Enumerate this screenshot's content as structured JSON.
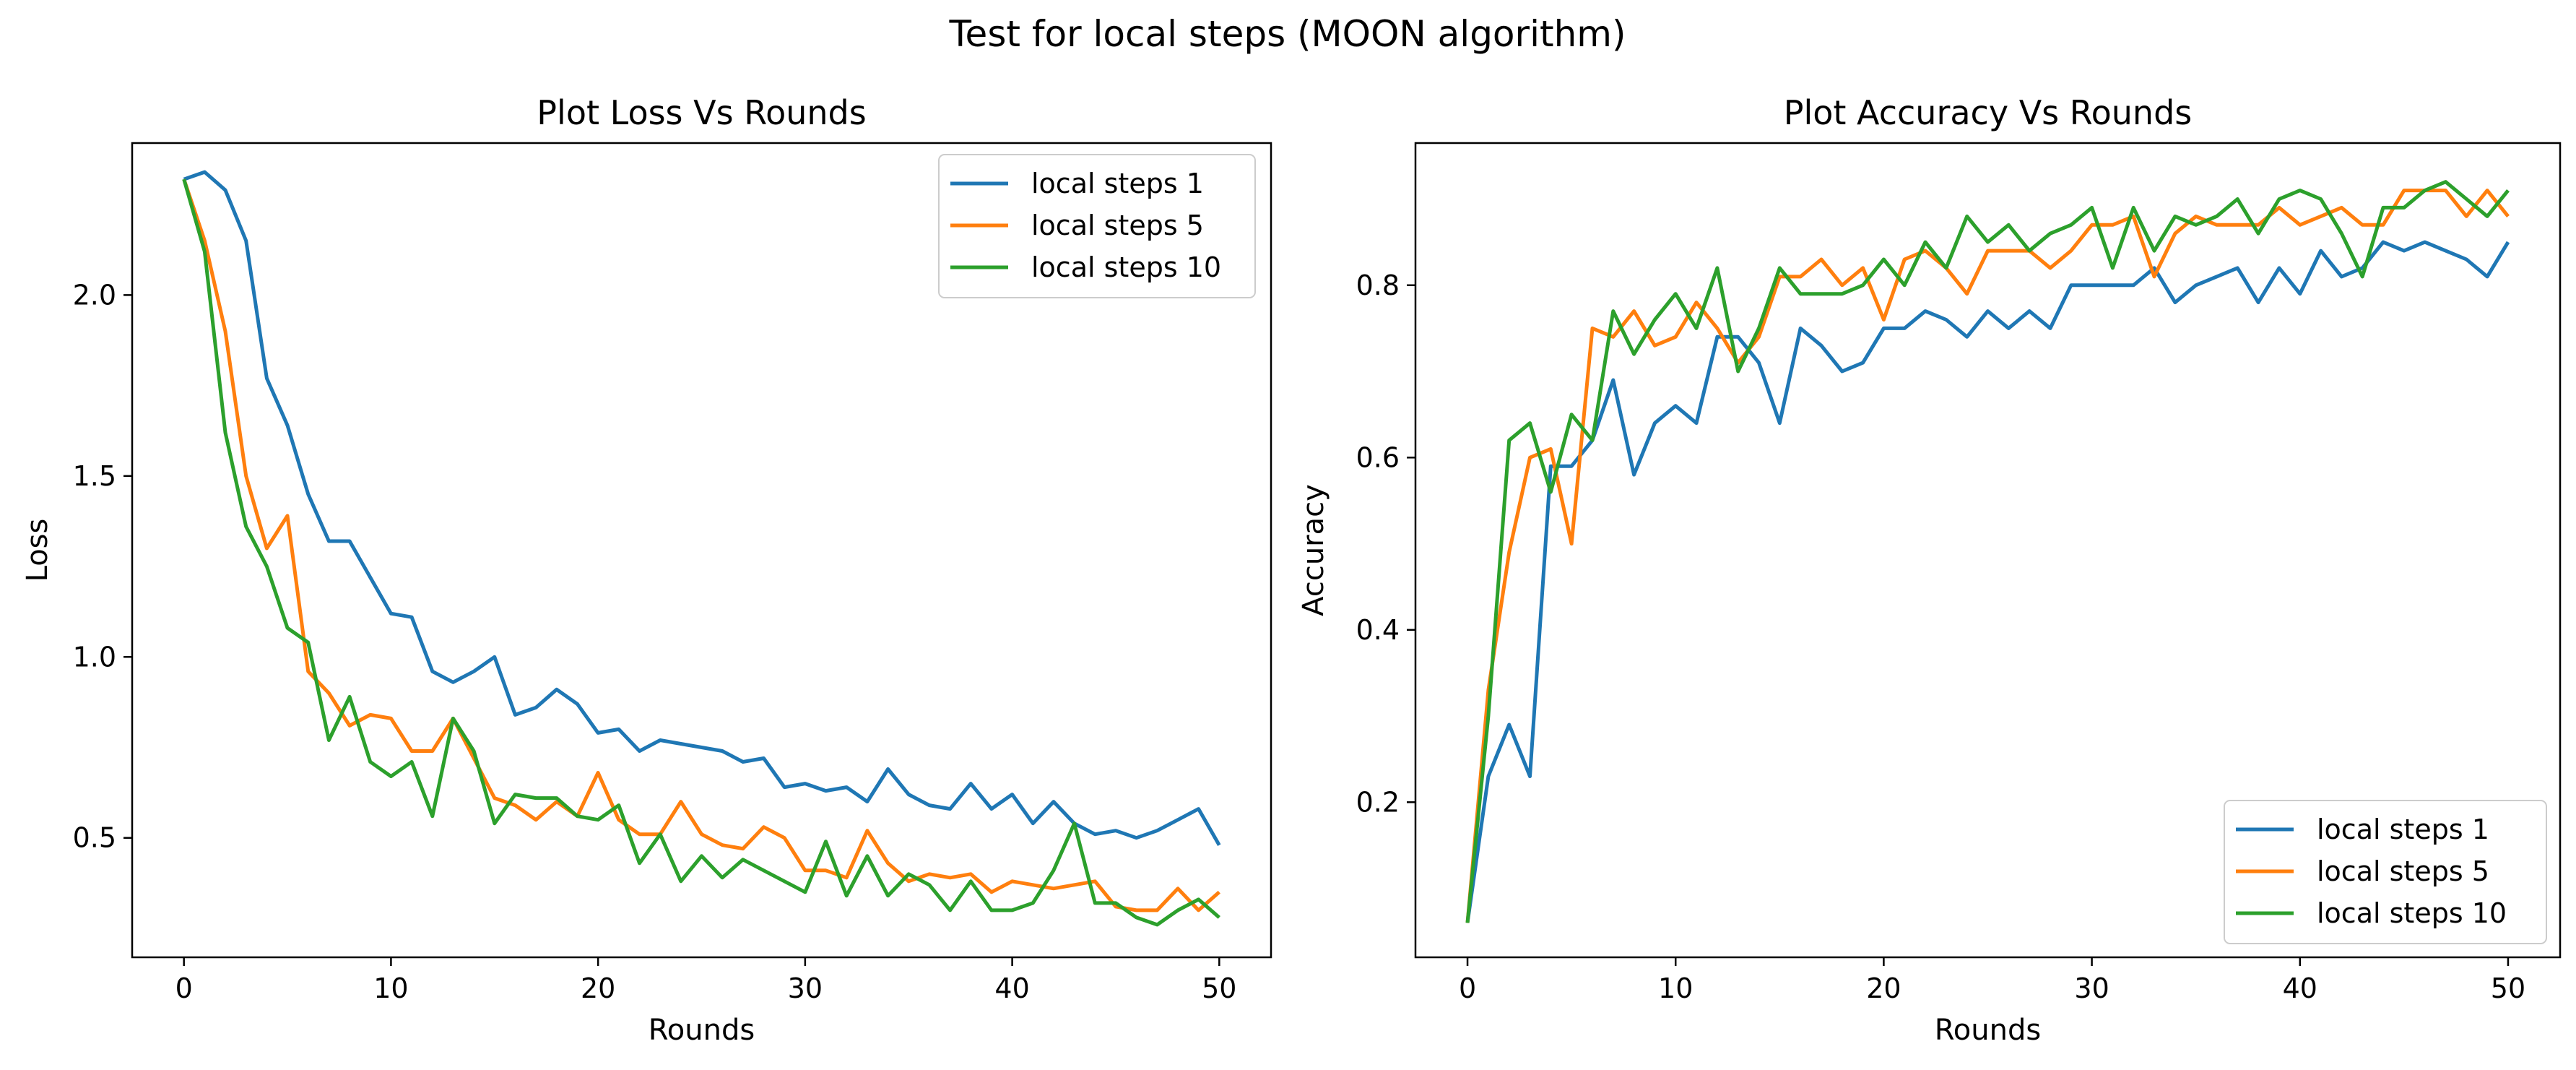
{
  "figure": {
    "suptitle": "Test for local steps (MOON algorithm)"
  },
  "colors": {
    "series1": "#1f77b4",
    "series2": "#ff7f0e",
    "series3": "#2ca02c"
  },
  "chart_data": [
    {
      "type": "line",
      "title": "Plot Loss Vs Rounds",
      "xlabel": "Rounds",
      "ylabel": "Loss",
      "xlim": [
        -2.5,
        52.5
      ],
      "ylim": [
        0.17,
        2.42
      ],
      "xticks": [
        0,
        10,
        20,
        30,
        40,
        50
      ],
      "yticks": [
        0.5,
        1.0,
        1.5,
        2.0
      ],
      "ytick_labels": [
        "0.5",
        "1.0",
        "1.5",
        "2.0"
      ],
      "legend": "top-right",
      "grid": false,
      "series": [
        {
          "name": "local steps 1",
          "values": [
            2.32,
            2.34,
            2.29,
            2.15,
            1.77,
            1.64,
            1.45,
            1.32,
            1.32,
            1.22,
            1.12,
            1.11,
            0.96,
            0.93,
            0.96,
            1.0,
            0.84,
            0.86,
            0.91,
            0.87,
            0.79,
            0.8,
            0.74,
            0.77,
            0.76,
            0.75,
            0.74,
            0.71,
            0.72,
            0.64,
            0.65,
            0.63,
            0.64,
            0.6,
            0.69,
            0.62,
            0.59,
            0.58,
            0.65,
            0.58,
            0.62,
            0.54,
            0.6,
            0.54,
            0.51,
            0.52,
            0.5,
            0.52,
            0.55,
            0.58,
            0.48
          ]
        },
        {
          "name": "local steps 5",
          "values": [
            2.32,
            2.15,
            1.9,
            1.5,
            1.3,
            1.39,
            0.96,
            0.9,
            0.81,
            0.84,
            0.83,
            0.74,
            0.74,
            0.83,
            0.72,
            0.61,
            0.59,
            0.55,
            0.6,
            0.56,
            0.68,
            0.55,
            0.51,
            0.51,
            0.6,
            0.51,
            0.48,
            0.47,
            0.53,
            0.5,
            0.41,
            0.41,
            0.39,
            0.52,
            0.43,
            0.38,
            0.4,
            0.39,
            0.4,
            0.35,
            0.38,
            0.37,
            0.36,
            0.37,
            0.38,
            0.31,
            0.3,
            0.3,
            0.36,
            0.3,
            0.35
          ]
        },
        {
          "name": "local steps 10",
          "values": [
            2.32,
            2.12,
            1.62,
            1.36,
            1.25,
            1.08,
            1.04,
            0.77,
            0.89,
            0.71,
            0.67,
            0.71,
            0.56,
            0.83,
            0.74,
            0.54,
            0.62,
            0.61,
            0.61,
            0.56,
            0.55,
            0.59,
            0.43,
            0.51,
            0.38,
            0.45,
            0.39,
            0.44,
            0.41,
            0.38,
            0.35,
            0.49,
            0.34,
            0.45,
            0.34,
            0.4,
            0.37,
            0.3,
            0.38,
            0.3,
            0.3,
            0.32,
            0.41,
            0.54,
            0.32,
            0.32,
            0.28,
            0.26,
            0.3,
            0.33,
            0.28
          ]
        }
      ]
    },
    {
      "type": "line",
      "title": "Plot Accuracy Vs Rounds",
      "xlabel": "Rounds",
      "ylabel": "Accuracy",
      "xlim": [
        -2.5,
        52.5
      ],
      "ylim": [
        0.02,
        0.965
      ],
      "xticks": [
        0,
        10,
        20,
        30,
        40,
        50
      ],
      "yticks": [
        0.2,
        0.4,
        0.6,
        0.8
      ],
      "ytick_labels": [
        "0.2",
        "0.4",
        "0.6",
        "0.8"
      ],
      "legend": "bottom-right",
      "grid": false,
      "series": [
        {
          "name": "local steps 1",
          "values": [
            0.06,
            0.23,
            0.29,
            0.23,
            0.59,
            0.59,
            0.62,
            0.69,
            0.58,
            0.64,
            0.66,
            0.64,
            0.74,
            0.74,
            0.71,
            0.64,
            0.75,
            0.73,
            0.7,
            0.71,
            0.75,
            0.75,
            0.77,
            0.76,
            0.74,
            0.77,
            0.75,
            0.77,
            0.75,
            0.8,
            0.8,
            0.8,
            0.8,
            0.82,
            0.78,
            0.8,
            0.81,
            0.82,
            0.78,
            0.82,
            0.79,
            0.84,
            0.81,
            0.82,
            0.85,
            0.84,
            0.85,
            0.84,
            0.83,
            0.81,
            0.85
          ]
        },
        {
          "name": "local steps 5",
          "values": [
            0.06,
            0.33,
            0.49,
            0.6,
            0.61,
            0.5,
            0.75,
            0.74,
            0.77,
            0.73,
            0.74,
            0.78,
            0.75,
            0.71,
            0.74,
            0.81,
            0.81,
            0.83,
            0.8,
            0.82,
            0.76,
            0.83,
            0.84,
            0.82,
            0.79,
            0.84,
            0.84,
            0.84,
            0.82,
            0.84,
            0.87,
            0.87,
            0.88,
            0.81,
            0.86,
            0.88,
            0.87,
            0.87,
            0.87,
            0.89,
            0.87,
            0.88,
            0.89,
            0.87,
            0.87,
            0.91,
            0.91,
            0.91,
            0.88,
            0.91,
            0.88
          ]
        },
        {
          "name": "local steps 10",
          "values": [
            0.06,
            0.3,
            0.62,
            0.64,
            0.56,
            0.65,
            0.62,
            0.77,
            0.72,
            0.76,
            0.79,
            0.75,
            0.82,
            0.7,
            0.75,
            0.82,
            0.79,
            0.79,
            0.79,
            0.8,
            0.83,
            0.8,
            0.85,
            0.82,
            0.88,
            0.85,
            0.87,
            0.84,
            0.86,
            0.87,
            0.89,
            0.82,
            0.89,
            0.84,
            0.88,
            0.87,
            0.88,
            0.9,
            0.86,
            0.9,
            0.91,
            0.9,
            0.86,
            0.81,
            0.89,
            0.89,
            0.91,
            0.92,
            0.9,
            0.88,
            0.91
          ]
        }
      ]
    }
  ]
}
